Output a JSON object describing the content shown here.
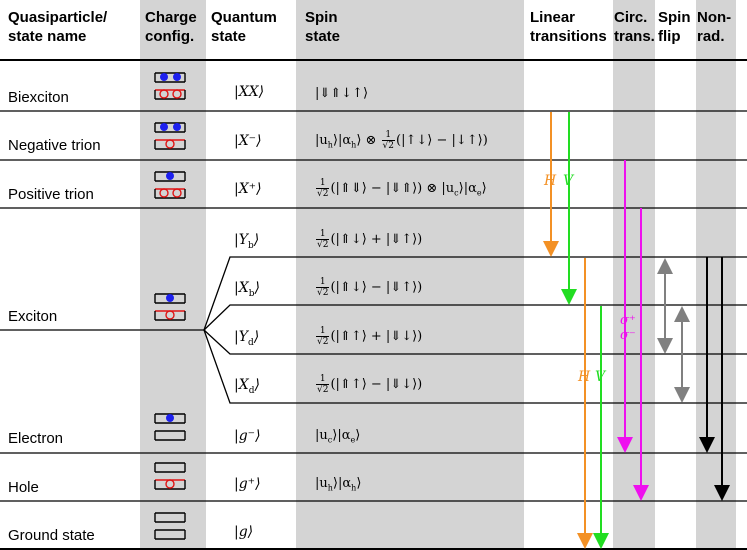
{
  "headers": {
    "name": "Quasiparticle/\nstate name",
    "charge": "Charge\nconfig.",
    "quantum": "Quantum\nstate",
    "spin": "Spin\nstate",
    "linear": "Linear\ntransitions",
    "circ": "Circ.\ntrans.",
    "spinflip": "Spin\nflip",
    "nonrad": "Non-\nrad."
  },
  "states": [
    {
      "name": "Biexciton",
      "ket": "|XX⟩",
      "spin": "|⇓⇑↓↑⟩"
    },
    {
      "name": "Negative trion",
      "ket": "|X⁻⟩",
      "spin_pre": "|u",
      "spin_sub1": "h",
      "spin_mid": "⟩|α",
      "spin_sub2": "h",
      "spin_mid2": "⟩ ⊗ ",
      "frac_num": "1",
      "frac_den": "√2",
      "spin_post": "(|↑↓⟩ − |↓↑⟩)"
    },
    {
      "name": "Positive trion",
      "ket": "|X⁺⟩",
      "frac_num": "1",
      "frac_den": "√2",
      "spin_post": "(|⇑⇓⟩ − |⇓⇑⟩) ⊗ |u",
      "spin_sub1": "c",
      "spin_mid": "⟩|α",
      "spin_sub2": "e",
      "spin_end": "⟩"
    },
    {
      "name": "Exciton",
      "sub": [
        {
          "ket": "|Y",
          "ket_sub": "b",
          "spin": "(|⇑↓⟩ + |⇓↑⟩)"
        },
        {
          "ket": "|X",
          "ket_sub": "b",
          "spin": "(|⇑↓⟩ − |⇓↑⟩)"
        },
        {
          "ket": "|Y",
          "ket_sub": "d",
          "spin": "(|⇑↑⟩ + |⇓↓⟩)"
        },
        {
          "ket": "|X",
          "ket_sub": "d",
          "spin": "(|⇑↑⟩ − |⇓↓⟩)"
        }
      ]
    },
    {
      "name": "Electron",
      "ket": "|g⁻⟩",
      "spin_pre": "|u",
      "spin_sub1": "c",
      "spin_mid": "⟩|α",
      "spin_sub2": "e",
      "spin_end": "⟩"
    },
    {
      "name": "Hole",
      "ket": "|g⁺⟩",
      "spin_pre": "|u",
      "spin_sub1": "h",
      "spin_mid": "⟩|α",
      "spin_sub2": "h",
      "spin_end": "⟩"
    },
    {
      "name": "Ground state",
      "ket": "|g⟩"
    }
  ],
  "frac": {
    "num": "1",
    "den": "√2"
  },
  "labels": {
    "H": "H",
    "V": "V",
    "sigma_plus": "σ⁺",
    "sigma_minus": "σ⁻"
  },
  "colors": {
    "orange": "#f39125",
    "green": "#22dd22",
    "magenta": "#ee10ee",
    "gray": "#808080",
    "black": "#000000",
    "blue": "#1d20ee",
    "red": "#e01515",
    "column_bg": "#d4d4d4"
  }
}
